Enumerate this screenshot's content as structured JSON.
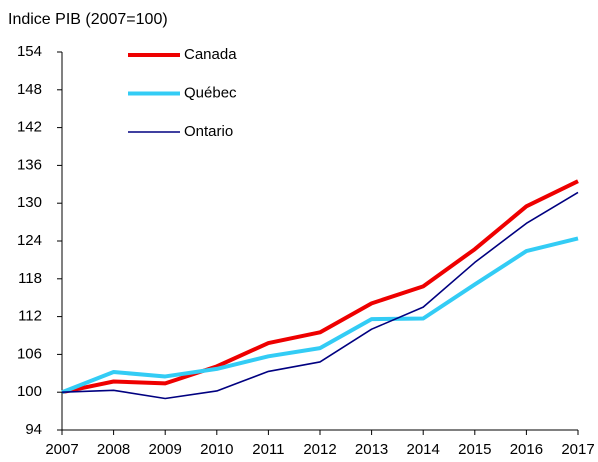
{
  "chart_data": {
    "type": "line",
    "title": "Indice PIB (2007=100)",
    "x": [
      2007,
      2008,
      2009,
      2010,
      2011,
      2012,
      2013,
      2014,
      2015,
      2016,
      2017
    ],
    "xlim": [
      2007,
      2017
    ],
    "xticks": [
      2007,
      2008,
      2009,
      2010,
      2011,
      2012,
      2013,
      2014,
      2015,
      2016,
      2017
    ],
    "ylim": [
      94,
      154
    ],
    "yticks": [
      94,
      100,
      106,
      112,
      118,
      124,
      130,
      136,
      142,
      148,
      154
    ],
    "legend": "upper left",
    "series": [
      {
        "name": "Canada",
        "color": "#ee0000",
        "values": [
          100,
          101.7,
          101.4,
          104.1,
          107.8,
          109.5,
          114.1,
          116.8,
          122.7,
          129.5,
          133.5
        ]
      },
      {
        "name": "Québec",
        "color": "#33ccf5",
        "values": [
          100,
          103.2,
          102.5,
          103.7,
          105.7,
          107.0,
          111.6,
          111.7,
          117.1,
          122.4,
          124.4
        ]
      },
      {
        "name": "Ontario",
        "color": "#000080",
        "values": [
          100,
          100.3,
          99.0,
          100.2,
          103.3,
          104.8,
          110.0,
          113.5,
          120.6,
          126.8,
          131.7
        ]
      }
    ]
  }
}
